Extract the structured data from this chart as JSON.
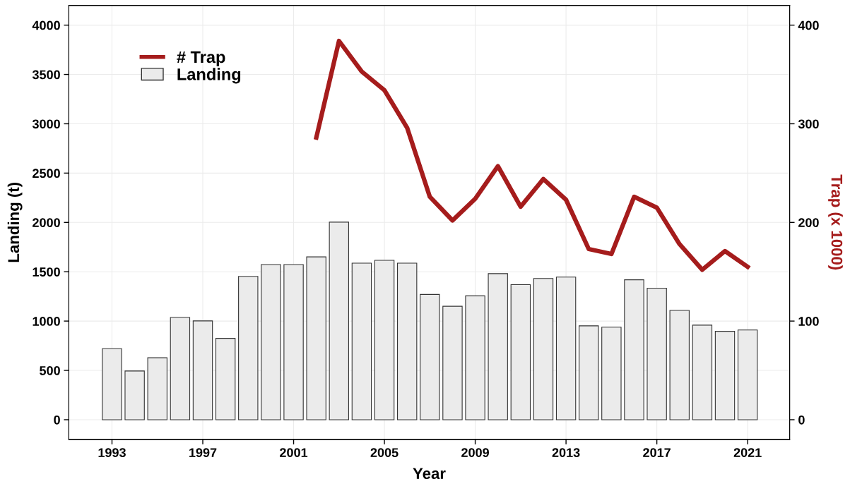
{
  "chart_data": {
    "type": "bar",
    "xlabel": "Year",
    "ylabel": "Landing (t)",
    "y2label": "Trap (x 1000)",
    "x": [
      1993,
      1994,
      1995,
      1996,
      1997,
      1998,
      1999,
      2000,
      2001,
      2002,
      2003,
      2004,
      2005,
      2006,
      2007,
      2008,
      2009,
      2010,
      2011,
      2012,
      2013,
      2014,
      2015,
      2016,
      2017,
      2018,
      2019,
      2020,
      2021
    ],
    "series": [
      {
        "name": "# Trap",
        "type": "line",
        "axis": "y2",
        "color": "#a51c1c",
        "x": [
          2002,
          2003,
          2004,
          2005,
          2006,
          2007,
          2008,
          2009,
          2010,
          2011,
          2012,
          2013,
          2014,
          2015,
          2016,
          2017,
          2018,
          2019,
          2020,
          2021
        ],
        "values": [
          286,
          384,
          353,
          334,
          296,
          226,
          202,
          224,
          257,
          216,
          244,
          223,
          173,
          168,
          226,
          215,
          178,
          152,
          171,
          155
        ]
      },
      {
        "name": "Landing",
        "color": "#ebebeb",
        "values": [
          720,
          494,
          628,
          1037,
          1002,
          825,
          1453,
          1573,
          1573,
          1651,
          2003,
          1587,
          1616,
          1587,
          1270,
          1150,
          1256,
          1481,
          1369,
          1432,
          1446,
          952,
          938,
          1418,
          1333,
          1108,
          959,
          896,
          910
        ]
      }
    ],
    "xlim": [
      1991.1,
      2022.85
    ],
    "xticks": [
      1993,
      1997,
      2001,
      2005,
      2009,
      2013,
      2017,
      2021
    ],
    "ylim": [
      -200,
      4200
    ],
    "yticks": [
      0,
      500,
      1000,
      1500,
      2000,
      2500,
      3000,
      3500,
      4000
    ],
    "y2lim": [
      -20,
      420
    ],
    "y2ticks": [
      0,
      100,
      200,
      300,
      400
    ],
    "grid": true,
    "legend": "top left",
    "marker": "none",
    "line_style": "solid"
  }
}
